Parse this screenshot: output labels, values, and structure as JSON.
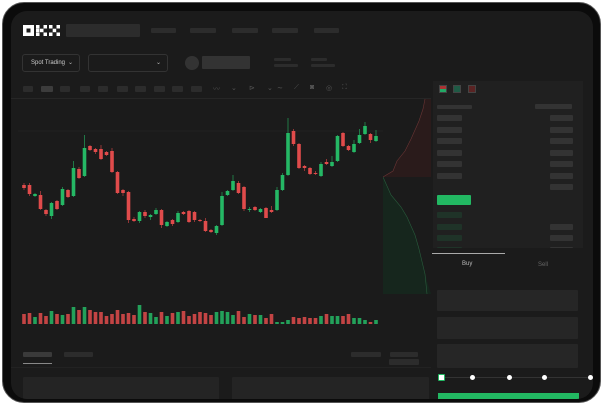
{
  "brand": {
    "logo": "OKX"
  },
  "header": {
    "market_selector": "Spot Trading",
    "pair_selector": ""
  },
  "toolbar": {
    "icons": [
      "indicator-icon",
      "line-icon",
      "ruler-icon",
      "camera-icon",
      "settings-icon",
      "fullscreen-icon"
    ]
  },
  "order_form": {
    "tabs": [
      {
        "label": "Buy",
        "active": true
      },
      {
        "label": "Sell",
        "active": false
      }
    ],
    "leverage_slider": {
      "value_percent": 0,
      "stops": 5
    }
  },
  "colors": {
    "up": "#25b865",
    "down": "#e04b4b",
    "background": "#1b1b1b",
    "accent": "#22b862"
  },
  "chart_data": {
    "type": "candlestick",
    "title": "",
    "grid": false,
    "candles_ohlc": [
      [
        58,
        60,
        53,
        55
      ],
      [
        58,
        60,
        47,
        49
      ],
      [
        47,
        50,
        46,
        49
      ],
      [
        48,
        52,
        33,
        34
      ],
      [
        33,
        34,
        27,
        29
      ],
      [
        27,
        41,
        24,
        40
      ],
      [
        42,
        43,
        33,
        34
      ],
      [
        38,
        56,
        37,
        54
      ],
      [
        53,
        54,
        45,
        46
      ],
      [
        47,
        82,
        46,
        75
      ],
      [
        74,
        76,
        64,
        65
      ],
      [
        67,
        108,
        66,
        95
      ],
      [
        97,
        98,
        92,
        93
      ],
      [
        94,
        95,
        89,
        91
      ],
      [
        94,
        98,
        83,
        84
      ],
      [
        91,
        92,
        87,
        88
      ],
      [
        92,
        95,
        70,
        71
      ],
      [
        71,
        72,
        49,
        50
      ],
      [
        53,
        54,
        47,
        50
      ],
      [
        51,
        52,
        20,
        23
      ],
      [
        24,
        26,
        21,
        22
      ],
      [
        22,
        32,
        20,
        31
      ],
      [
        31,
        33,
        25,
        27
      ],
      [
        26,
        29,
        23,
        28
      ],
      [
        29,
        35,
        28,
        33
      ],
      [
        33,
        34,
        15,
        18
      ],
      [
        17,
        22,
        16,
        21
      ],
      [
        23,
        24,
        17,
        19
      ],
      [
        21,
        32,
        20,
        30
      ],
      [
        31,
        32,
        28,
        29
      ],
      [
        32,
        33,
        20,
        21
      ],
      [
        31,
        32,
        21,
        23
      ],
      [
        23,
        24,
        21,
        22
      ],
      [
        22,
        25,
        11,
        12
      ],
      [
        13,
        14,
        10,
        11
      ],
      [
        10,
        18,
        8,
        17
      ],
      [
        18,
        51,
        17,
        47
      ],
      [
        48,
        53,
        47,
        52
      ],
      [
        53,
        68,
        52,
        62
      ],
      [
        60,
        62,
        49,
        50
      ],
      [
        56,
        57,
        32,
        34
      ],
      [
        33,
        36,
        31,
        34
      ],
      [
        36,
        37,
        32,
        33
      ],
      [
        31,
        35,
        30,
        34
      ],
      [
        35,
        36,
        25,
        25
      ],
      [
        33,
        37,
        30,
        31
      ],
      [
        33,
        56,
        32,
        53
      ],
      [
        53,
        70,
        52,
        68
      ],
      [
        68,
        125,
        67,
        110
      ],
      [
        112,
        114,
        97,
        99
      ],
      [
        99,
        100,
        74,
        75
      ],
      [
        77,
        78,
        72,
        75
      ],
      [
        75,
        76,
        68,
        69
      ],
      [
        70,
        72,
        68,
        69
      ],
      [
        67,
        81,
        66,
        79
      ],
      [
        81,
        84,
        78,
        79
      ],
      [
        77,
        87,
        76,
        81
      ],
      [
        82,
        108,
        81,
        107
      ],
      [
        110,
        111,
        96,
        97
      ],
      [
        97,
        98,
        92,
        93
      ],
      [
        91,
        103,
        90,
        99
      ],
      [
        100,
        114,
        99,
        108
      ],
      [
        109,
        121,
        108,
        117
      ],
      [
        109,
        110,
        100,
        103
      ],
      [
        102,
        113,
        101,
        107
      ]
    ],
    "volume": [
      10,
      11,
      7,
      11,
      8,
      13,
      10,
      9,
      10,
      17,
      14,
      17,
      14,
      12,
      12,
      8,
      10,
      14,
      10,
      11,
      9,
      19,
      12,
      11,
      7,
      12,
      8,
      11,
      12,
      13,
      8,
      10,
      12,
      11,
      9,
      12,
      13,
      12,
      9,
      13,
      7,
      10,
      9,
      9,
      6,
      10,
      2,
      2,
      4,
      7,
      6,
      7,
      6,
      6,
      8,
      10,
      8,
      8,
      8,
      10,
      6,
      6,
      4,
      2,
      4
    ],
    "reference_line": 112
  }
}
